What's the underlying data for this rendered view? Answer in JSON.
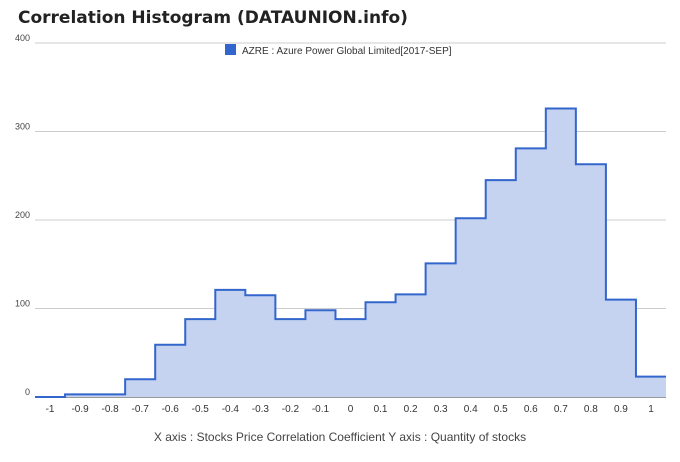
{
  "chart_data": {
    "type": "area",
    "title": "Correlation Histogram (DATAUNION.info)",
    "caption": "X axis : Stocks Price Correlation Coefficient  Y axis : Quantity of stocks",
    "legend": {
      "label": "AZRE : Azure Power Global Limited[2017-SEP]",
      "position": "top-center"
    },
    "series": [
      {
        "name": "AZRE : Azure Power Global Limited[2017-SEP]",
        "color": "#3366cc",
        "fill": "#c5d3f1",
        "x": [
          -1,
          -0.9,
          -0.8,
          -0.7,
          -0.6,
          -0.5,
          -0.4,
          -0.3,
          -0.2,
          -0.1,
          0,
          0.1,
          0.2,
          0.3,
          0.4,
          0.5,
          0.6,
          0.7,
          0.8,
          0.9,
          1
        ],
        "values": [
          0,
          3,
          3,
          20,
          59,
          88,
          121,
          115,
          88,
          98,
          88,
          107,
          116,
          151,
          202,
          245,
          281,
          326,
          263,
          110,
          23
        ]
      }
    ],
    "xticks": [
      "-1",
      "-0.9",
      "-0.8",
      "-0.7",
      "-0.6",
      "-0.5",
      "-0.4",
      "-0.3",
      "-0.2",
      "-0.1",
      "0",
      "0.1",
      "0.2",
      "0.3",
      "0.4",
      "0.5",
      "0.6",
      "0.7",
      "0.8",
      "0.9",
      "1"
    ],
    "yticks": [
      "0",
      "100",
      "200",
      "300",
      "400"
    ],
    "ylim": [
      0,
      400
    ],
    "xlim": [
      -1.05,
      1.05
    ],
    "grid": true
  }
}
